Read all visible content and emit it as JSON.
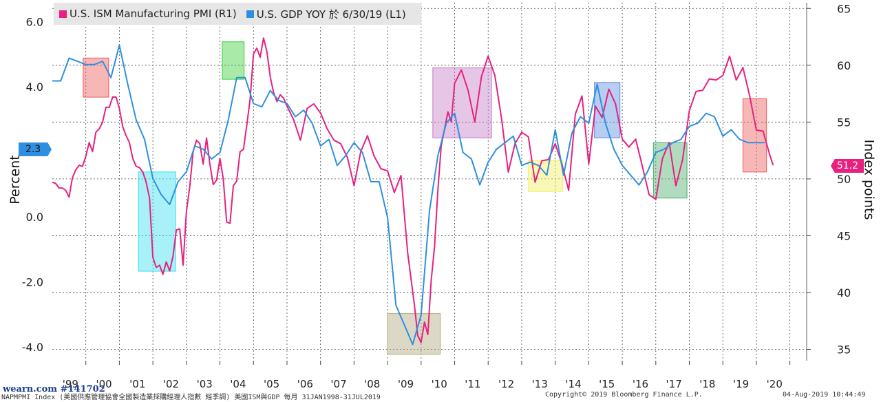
{
  "legend": [
    {
      "label": "U.S. ISM Manufacturing PMI (R1)",
      "color": "#e8207f"
    },
    {
      "label": "U.S. GDP YOY 於 6/30/19 (L1)",
      "color": "#2e8fe0"
    }
  ],
  "left_axis_title": "Percent",
  "right_axis_title": "Index points",
  "left_tag": "2.3",
  "right_tag": "51.2",
  "footer": {
    "left": "NAPMPMI Index (美國供應管理協會全國製造業採購經理人指數 經季調) 美國ISM與GDP  每月 31JAN1998-31JUL2019",
    "center": "Copyright© 2019 Bloomberg Finance L.P.",
    "right": "04-Aug-2019 10:44:49"
  },
  "watermark": "wearn.com #141702",
  "chart_data": {
    "type": "line",
    "x_ticks": [
      "'99",
      "'00",
      "'01",
      "'02",
      "'03",
      "'04",
      "'05",
      "'06",
      "'07",
      "'08",
      "'09",
      "'10",
      "'11",
      "'12",
      "'13",
      "'14",
      "'15",
      "'16",
      "'17",
      "'18",
      "'19",
      "'20"
    ],
    "x_range": [
      1998.0,
      2020.5
    ],
    "left_axis": {
      "title": "Percent",
      "range": [
        -4.4,
        6.6
      ],
      "ticks": [
        -4.0,
        -2.0,
        0.0,
        2.0,
        4.0,
        6.0
      ],
      "tick_labels": [
        "-4.0",
        "-2.0",
        "0.0",
        "2.0",
        "4.0",
        "6.0"
      ]
    },
    "right_axis": {
      "title": "Index points",
      "range": [
        34,
        65.5
      ],
      "ticks": [
        35,
        40,
        45,
        50,
        55,
        60,
        65
      ],
      "tick_labels": [
        "35",
        "40",
        "45",
        "50",
        "55",
        "60",
        "65"
      ]
    },
    "grid": true,
    "series": [
      {
        "name": "U.S. ISM Manufacturing PMI (R1)",
        "axis": "right",
        "color": "#e8207f",
        "x": [
          1998.0,
          1998.1,
          1998.2,
          1998.3,
          1998.4,
          1998.5,
          1998.6,
          1998.7,
          1998.8,
          1998.9,
          1999.0,
          1999.1,
          1999.2,
          1999.3,
          1999.4,
          1999.5,
          1999.6,
          1999.7,
          1999.8,
          1999.9,
          2000.0,
          2000.1,
          2000.2,
          2000.3,
          2000.4,
          2000.5,
          2000.6,
          2000.7,
          2000.8,
          2000.9,
          2001.0,
          2001.1,
          2001.2,
          2001.3,
          2001.4,
          2001.5,
          2001.6,
          2001.7,
          2001.8,
          2001.9,
          2002.0,
          2002.1,
          2002.2,
          2002.3,
          2002.4,
          2002.5,
          2002.6,
          2002.7,
          2002.8,
          2002.9,
          2003.0,
          2003.1,
          2003.2,
          2003.3,
          2003.4,
          2003.5,
          2003.6,
          2003.7,
          2003.8,
          2003.9,
          2004.0,
          2004.1,
          2004.2,
          2004.3,
          2004.4,
          2004.5,
          2004.6,
          2004.7,
          2004.8,
          2004.9,
          2005.0,
          2005.2,
          2005.4,
          2005.6,
          2005.8,
          2006.0,
          2006.2,
          2006.4,
          2006.6,
          2006.8,
          2007.0,
          2007.2,
          2007.4,
          2007.6,
          2007.8,
          2008.0,
          2008.2,
          2008.4,
          2008.6,
          2008.8,
          2008.9,
          2009.0,
          2009.1,
          2009.2,
          2009.3,
          2009.4,
          2009.5,
          2009.6,
          2009.7,
          2009.8,
          2009.9,
          2010.0,
          2010.2,
          2010.4,
          2010.6,
          2010.8,
          2011.0,
          2011.2,
          2011.4,
          2011.6,
          2011.8,
          2012.0,
          2012.2,
          2012.4,
          2012.6,
          2012.8,
          2013.0,
          2013.2,
          2013.4,
          2013.6,
          2013.8,
          2014.0,
          2014.2,
          2014.4,
          2014.6,
          2014.8,
          2015.0,
          2015.2,
          2015.4,
          2015.6,
          2015.8,
          2016.0,
          2016.2,
          2016.4,
          2016.6,
          2016.8,
          2017.0,
          2017.2,
          2017.4,
          2017.6,
          2017.8,
          2018.0,
          2018.2,
          2018.4,
          2018.6,
          2018.8,
          2019.0,
          2019.2,
          2019.4,
          2019.5
        ],
        "values": [
          49.7,
          49.6,
          49.2,
          49.2,
          49.0,
          48.4,
          50.1,
          50.8,
          51.2,
          51.1,
          52.0,
          53.2,
          52.4,
          54.1,
          54.4,
          55.0,
          56.3,
          56.3,
          57.2,
          57.2,
          56.2,
          54.6,
          53.8,
          53.2,
          51.8,
          51.1,
          51.0,
          50.6,
          49.7,
          48.3,
          43.1,
          42.2,
          42.4,
          41.6,
          42.7,
          41.9,
          43.2,
          45.5,
          45.6,
          42.4,
          47.1,
          49.3,
          52.4,
          53.4,
          53.1,
          51.3,
          53.6,
          51.3,
          49.5,
          49.9,
          51.8,
          50.0,
          46.2,
          46.1,
          49.4,
          49.8,
          52.4,
          52.6,
          54.7,
          57.0,
          61.0,
          61.5,
          60.7,
          62.4,
          61.2,
          59.0,
          57.6,
          56.8,
          57.4,
          57.1,
          56.4,
          55.2,
          53.4,
          56.2,
          56.6,
          55.8,
          54.4,
          53.4,
          53.1,
          51.9,
          49.4,
          52.4,
          53.8,
          52.0,
          50.9,
          50.7,
          48.8,
          50.3,
          43.5,
          38.9,
          36.2,
          35.6,
          37.4,
          36.3,
          41.0,
          44.0,
          49.0,
          52.9,
          54.4,
          55.9,
          55.0,
          58.4,
          59.6,
          57.8,
          55.0,
          59.0,
          60.8,
          59.1,
          55.3,
          50.6,
          53.1,
          54.1,
          53.7,
          49.7,
          51.6,
          51.7,
          53.1,
          51.3,
          49.0,
          55.7,
          57.3,
          51.3,
          56.4,
          55.4,
          57.9,
          56.6,
          53.5,
          52.8,
          53.5,
          51.1,
          48.6,
          48.2,
          51.8,
          53.2,
          49.4,
          51.7,
          56.0,
          57.7,
          57.8,
          58.8,
          58.7,
          59.1,
          60.8,
          58.7,
          59.8,
          57.3,
          54.3,
          54.2,
          52.1,
          51.2
        ],
        "closing_value": 51.2
      },
      {
        "name": "U.S. GDP YOY 於 6/30/19 (L1)",
        "axis": "left",
        "color": "#2e8fe0",
        "x": [
          1998.0,
          1998.25,
          1998.5,
          1998.75,
          1999.0,
          1999.25,
          1999.5,
          1999.75,
          2000.0,
          2000.25,
          2000.5,
          2000.75,
          2001.0,
          2001.25,
          2001.5,
          2001.75,
          2002.0,
          2002.25,
          2002.5,
          2002.75,
          2003.0,
          2003.25,
          2003.5,
          2003.75,
          2004.0,
          2004.25,
          2004.5,
          2004.75,
          2005.0,
          2005.25,
          2005.5,
          2005.75,
          2006.0,
          2006.25,
          2006.5,
          2006.75,
          2007.0,
          2007.25,
          2007.5,
          2007.75,
          2008.0,
          2008.25,
          2008.5,
          2008.75,
          2009.0,
          2009.25,
          2009.5,
          2009.75,
          2010.0,
          2010.25,
          2010.5,
          2010.75,
          2011.0,
          2011.25,
          2011.5,
          2011.75,
          2012.0,
          2012.25,
          2012.5,
          2012.75,
          2013.0,
          2013.25,
          2013.5,
          2013.75,
          2014.0,
          2014.25,
          2014.5,
          2014.75,
          2015.0,
          2015.25,
          2015.5,
          2015.75,
          2016.0,
          2016.25,
          2016.5,
          2016.75,
          2017.0,
          2017.25,
          2017.5,
          2017.75,
          2018.0,
          2018.25,
          2018.5,
          2018.75,
          2019.0,
          2019.25
        ],
        "values": [
          4.2,
          4.2,
          4.9,
          4.8,
          4.7,
          4.7,
          4.8,
          4.3,
          5.3,
          4.1,
          3.0,
          2.4,
          1.2,
          0.7,
          0.4,
          1.1,
          1.4,
          2.2,
          2.1,
          1.8,
          2.0,
          3.0,
          4.3,
          4.3,
          3.5,
          3.4,
          3.9,
          3.6,
          3.5,
          3.1,
          3.3,
          2.9,
          2.2,
          2.4,
          1.6,
          1.9,
          2.3,
          2.0,
          1.1,
          1.1,
          0.0,
          -2.7,
          -3.3,
          -3.9,
          -3.0,
          0.2,
          1.9,
          2.9,
          3.2,
          2.0,
          1.8,
          1.0,
          1.7,
          2.1,
          2.3,
          2.5,
          1.6,
          1.7,
          1.6,
          1.3,
          2.7,
          1.3,
          2.6,
          3.1,
          2.9,
          4.1,
          2.9,
          2.1,
          1.6,
          1.3,
          1.0,
          1.4,
          2.0,
          2.1,
          2.3,
          2.4,
          2.8,
          2.9,
          3.2,
          3.1,
          2.5,
          2.7,
          2.4,
          2.3,
          2.3,
          2.3
        ],
        "closing_value": 2.3
      }
    ],
    "highlight_boxes": [
      {
        "x": [
          1998.92,
          1999.68
        ],
        "axis": "left",
        "y": [
          3.7,
          4.9
        ],
        "color": "#f06060"
      },
      {
        "x": [
          2000.57,
          2001.68
        ],
        "axis": "left",
        "y": [
          -1.65,
          1.4
        ],
        "color": "#40e0f0"
      },
      {
        "x": [
          2003.07,
          2003.72
        ],
        "axis": "left",
        "y": [
          4.25,
          5.4
        ],
        "color": "#40d040"
      },
      {
        "x": [
          2008.0,
          2009.57
        ],
        "axis": "left",
        "y": [
          -4.2,
          -2.95
        ],
        "color": "#b0ab80"
      },
      {
        "x": [
          2009.35,
          2011.1
        ],
        "axis": "left",
        "y": [
          2.45,
          4.6
        ],
        "color": "#c580c8"
      },
      {
        "x": [
          2012.2,
          2013.22
        ],
        "axis": "left",
        "y": [
          0.8,
          1.75
        ],
        "color": "#f5f060"
      },
      {
        "x": [
          2014.17,
          2014.93
        ],
        "axis": "left",
        "y": [
          2.45,
          4.15
        ],
        "color": "#6090e0"
      },
      {
        "x": [
          2015.93,
          2016.93
        ],
        "axis": "left",
        "y": [
          0.6,
          2.3
        ],
        "color": "#50b070"
      },
      {
        "x": [
          2018.6,
          2019.3
        ],
        "axis": "left",
        "y": [
          1.4,
          3.65
        ],
        "color": "#f06060"
      }
    ]
  }
}
